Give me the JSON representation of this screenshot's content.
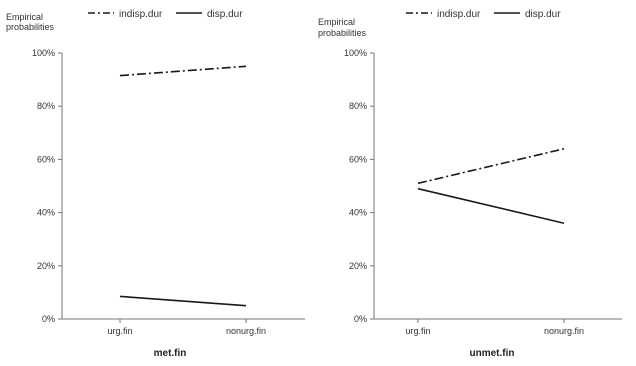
{
  "chart_data": [
    {
      "type": "line",
      "ylabel": "Empirical probabilities",
      "xlabel": "met.fin",
      "categories": [
        "urg.fin",
        "nonurg.fin"
      ],
      "ylim": [
        0,
        100
      ],
      "yticks": [
        "0%",
        "20%",
        "40%",
        "60%",
        "80%",
        "100%"
      ],
      "grid": false,
      "legend": "top",
      "series": [
        {
          "name": "indisp.dur",
          "values": [
            91.5,
            95
          ],
          "style": "dashdot"
        },
        {
          "name": "disp.dur",
          "values": [
            8.5,
            5
          ],
          "style": "solid"
        }
      ]
    },
    {
      "type": "line",
      "ylabel": "Empirical probabilities",
      "xlabel": "unmet.fin",
      "categories": [
        "urg.fin",
        "nonurg.fin"
      ],
      "ylim": [
        0,
        100
      ],
      "yticks": [
        "0%",
        "20%",
        "40%",
        "60%",
        "80%",
        "100%"
      ],
      "grid": false,
      "legend": "top",
      "series": [
        {
          "name": "indisp.dur",
          "values": [
            51,
            64
          ],
          "style": "dashdot"
        },
        {
          "name": "disp.dur",
          "values": [
            49,
            36
          ],
          "style": "solid"
        }
      ]
    }
  ],
  "colors": {
    "line": "#1a1a1a",
    "axis": "#777777",
    "text": "#333333"
  }
}
